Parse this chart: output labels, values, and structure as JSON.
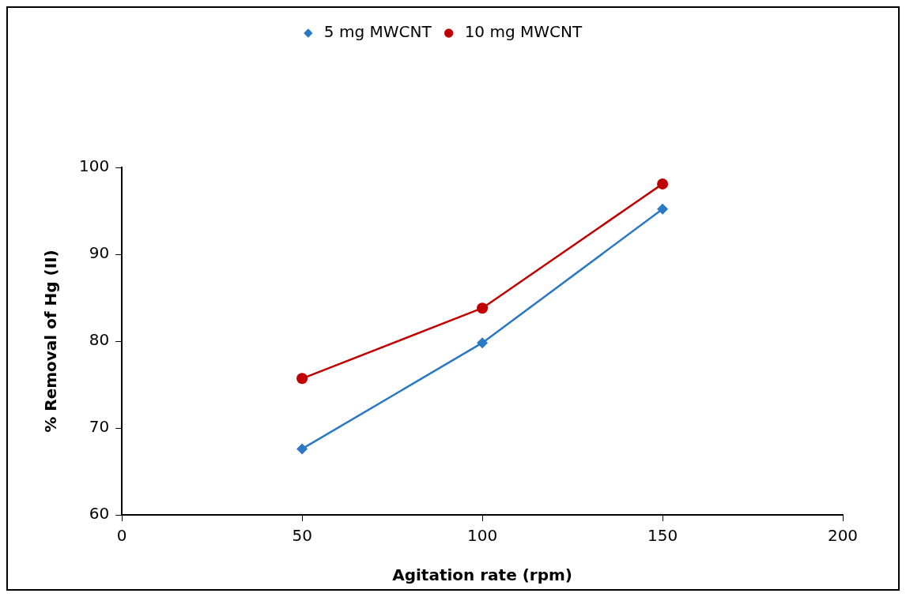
{
  "chart_data": {
    "type": "line",
    "xlabel": "Agitation rate (rpm)",
    "ylabel": "% Removal of Hg (II)",
    "x": [
      50,
      100,
      150
    ],
    "series": [
      {
        "name": "5 mg MWCNT",
        "color": "#2b78c5",
        "marker": "diamond",
        "values": [
          67.6,
          79.8,
          95.2
        ]
      },
      {
        "name": "10 mg MWCNT",
        "color": "#c00000",
        "marker": "circle",
        "values": [
          75.7,
          83.8,
          98.1
        ]
      }
    ],
    "xlim": [
      0,
      200
    ],
    "xticks": [
      0,
      50,
      100,
      150,
      200
    ],
    "ylim": [
      60,
      100
    ],
    "yticks": [
      60,
      70,
      80,
      90,
      100
    ],
    "grid": false,
    "legend": "top",
    "line_style": "solid"
  }
}
